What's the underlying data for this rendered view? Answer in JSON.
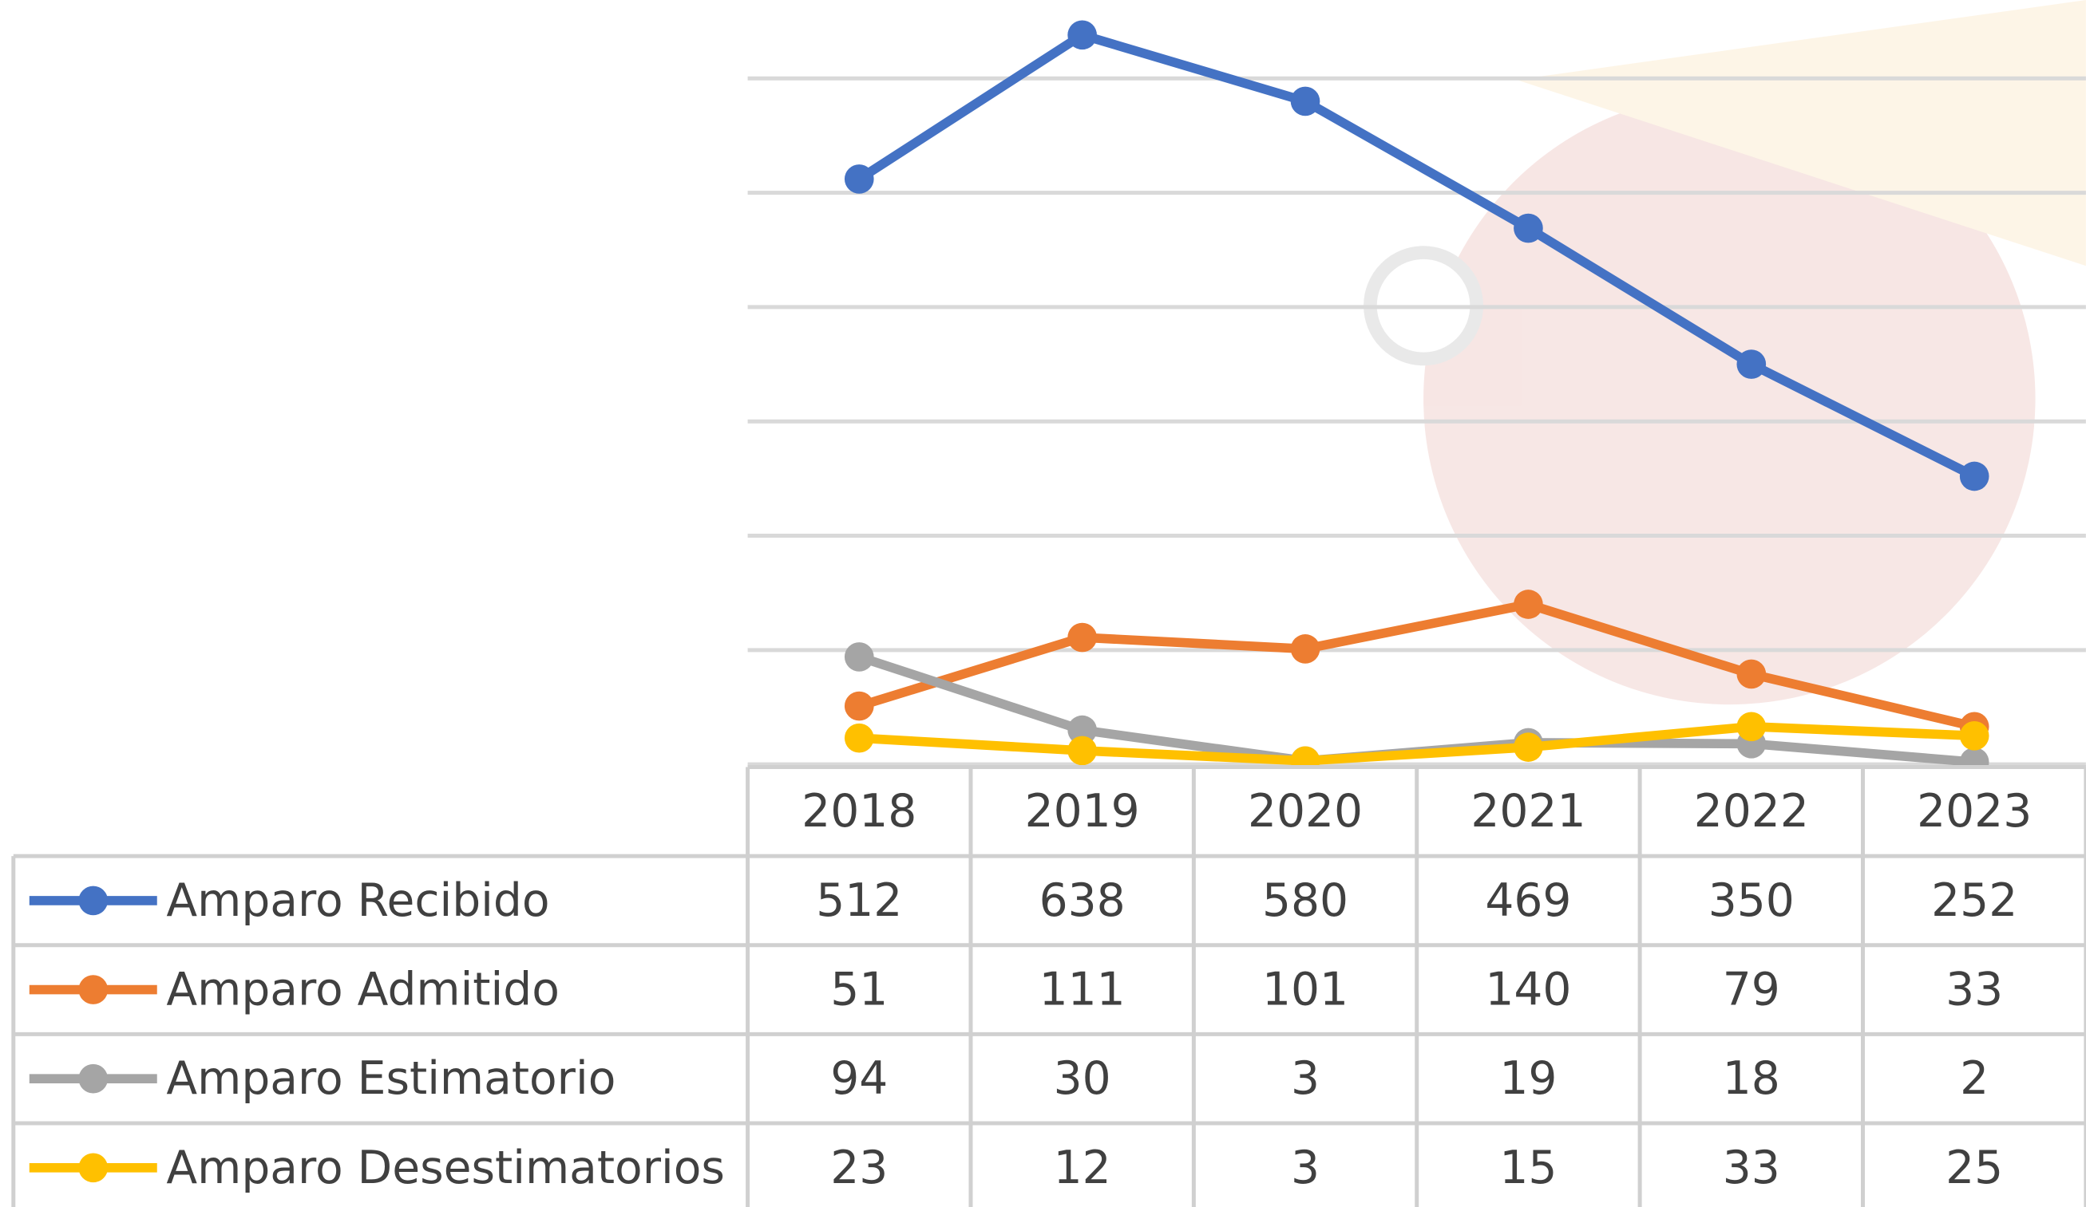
{
  "chart_data": {
    "type": "line",
    "categories": [
      "2018",
      "2019",
      "2020",
      "2021",
      "2022",
      "2023"
    ],
    "series": [
      {
        "name": "Amparo Recibido",
        "color": "#4472c4",
        "values": [
          512,
          638,
          580,
          469,
          350,
          252
        ]
      },
      {
        "name": "Amparo Admitido",
        "color": "#ed7d31",
        "values": [
          51,
          111,
          101,
          140,
          79,
          33
        ]
      },
      {
        "name": "Amparo Estimatorio",
        "color": "#a5a5a5",
        "values": [
          94,
          30,
          3,
          19,
          18,
          2
        ]
      },
      {
        "name": "Amparo Desestimatorios",
        "color": "#ffc000",
        "values": [
          23,
          12,
          3,
          15,
          33,
          25
        ]
      }
    ],
    "ylim": [
      0,
      650
    ],
    "yticks": [
      0,
      100,
      200,
      300,
      400,
      500,
      600
    ],
    "grid": true
  }
}
